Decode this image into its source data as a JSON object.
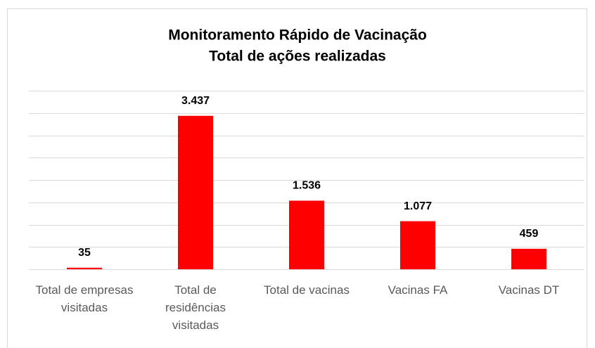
{
  "chart_data": {
    "type": "bar",
    "title": "Monitoramento Rápido de Vacinação",
    "subtitle": "Total de ações realizadas",
    "categories": [
      "Total de empresas visitadas",
      "Total de residências visitadas",
      "Total de vacinas",
      "Vacinas FA",
      "Vacinas DT"
    ],
    "values": [
      35,
      3437,
      1536,
      1077,
      459
    ],
    "value_labels": [
      "35",
      "3.437",
      "1.536",
      "1.077",
      "459"
    ],
    "color": "#ff0000",
    "ylim": [
      0,
      4000
    ],
    "yticks": [
      0,
      500,
      1000,
      1500,
      2000,
      2500,
      3000,
      3500,
      4000
    ],
    "grid": true
  }
}
